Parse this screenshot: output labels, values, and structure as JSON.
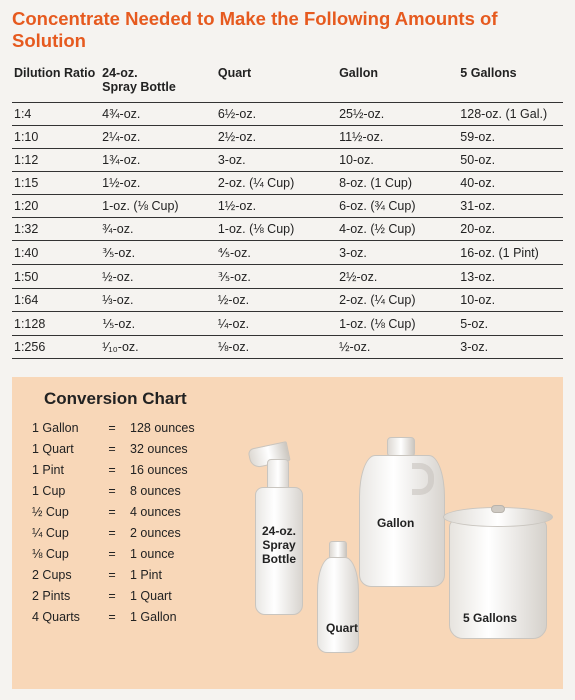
{
  "title": "Concentrate Needed to Make the Following Amounts of Solution",
  "title_color": "#e65a1f",
  "dilution_table": {
    "columns": [
      "Dilution Ratio",
      "24-oz.\nSpray Bottle",
      "Quart",
      "Gallon",
      "5 Gallons"
    ],
    "rows": [
      [
        "1:4",
        "4¾-oz.",
        "6½-oz.",
        "25½-oz.",
        "128-oz. (1 Gal.)"
      ],
      [
        "1:10",
        "2¼-oz.",
        "2½-oz.",
        "11½-oz.",
        "59-oz."
      ],
      [
        "1:12",
        "1¾-oz.",
        "3-oz.",
        "10-oz.",
        "50-oz."
      ],
      [
        "1:15",
        "1½-oz.",
        "2-oz. (¼ Cup)",
        "8-oz. (1 Cup)",
        "40-oz."
      ],
      [
        "1:20",
        "1-oz. (⅛ Cup)",
        "1½-oz.",
        "6-oz. (¾ Cup)",
        "31-oz."
      ],
      [
        "1:32",
        "¾-oz.",
        "1-oz. (⅛ Cup)",
        "4-oz. (½ Cup)",
        "20-oz."
      ],
      [
        "1:40",
        "⅗-oz.",
        "⅘-oz.",
        "3-oz.",
        "16-oz. (1 Pint)"
      ],
      [
        "1:50",
        "½-oz.",
        "⅗-oz.",
        "2½-oz.",
        "13-oz."
      ],
      [
        "1:64",
        "⅓-oz.",
        "½-oz.",
        "2-oz. (¼ Cup)",
        "10-oz."
      ],
      [
        "1:128",
        "⅕-oz.",
        "¼-oz.",
        "1-oz. (⅛ Cup)",
        "5-oz."
      ],
      [
        "1:256",
        "¹⁄₁₀-oz.",
        "⅛-oz.",
        "½-oz.",
        "3-oz."
      ]
    ],
    "border_color": "#333333",
    "text_color": "#222222",
    "fontsize": 12.5
  },
  "conversion": {
    "title": "Conversion Chart",
    "bg_color": "#f8d7b8",
    "rows": [
      [
        "1 Gallon",
        "=",
        "128 ounces"
      ],
      [
        "1 Quart",
        "=",
        "32 ounces"
      ],
      [
        "1 Pint",
        "=",
        "16 ounces"
      ],
      [
        "1 Cup",
        "=",
        "8 ounces"
      ],
      [
        "½ Cup",
        "=",
        "4 ounces"
      ],
      [
        "¼ Cup",
        "=",
        "2 ounces"
      ],
      [
        "⅛ Cup",
        "=",
        "1 ounce"
      ],
      [
        "2 Cups",
        "=",
        "1 Pint"
      ],
      [
        "2 Pints",
        "=",
        "1 Quart"
      ],
      [
        "4 Quarts",
        "=",
        "1 Gallon"
      ]
    ]
  },
  "container_labels": {
    "spray": "24-oz.\nSpray\nBottle",
    "gallon": "Gallon",
    "quart": "Quart",
    "five_gallons": "5 Gallons"
  }
}
